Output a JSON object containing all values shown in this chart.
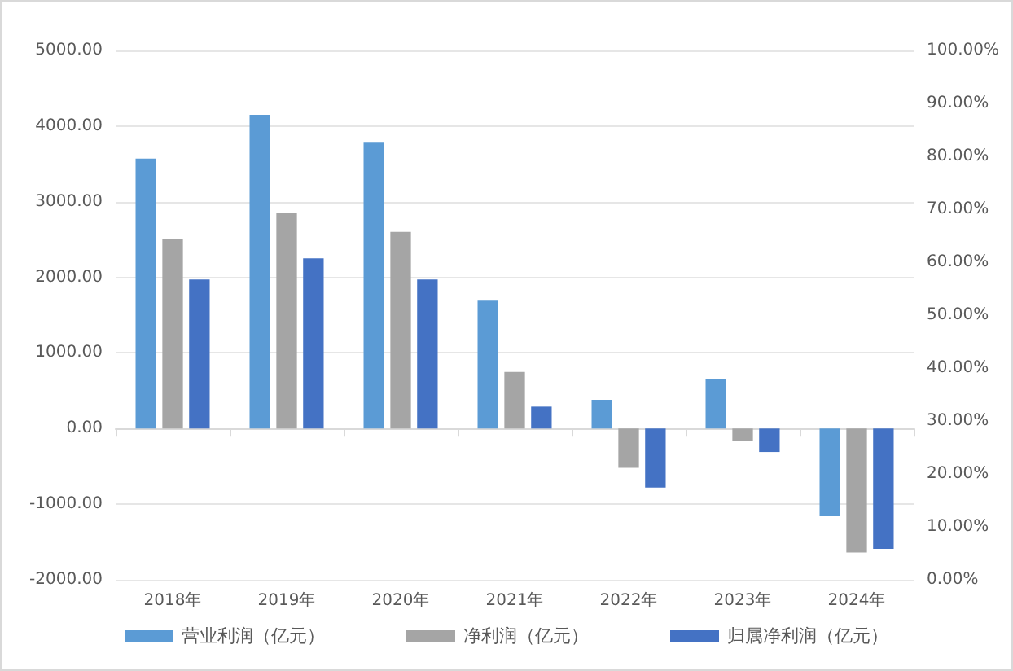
{
  "chart_data": {
    "type": "bar",
    "categories": [
      "2018年",
      "2019年",
      "2020年",
      "2021年",
      "2022年",
      "2023年",
      "2024年"
    ],
    "series": [
      {
        "name": "营业利润（亿元）",
        "color": "#5b9bd5",
        "values": [
          3570,
          4150,
          3790,
          1690,
          380,
          660,
          -1160
        ]
      },
      {
        "name": "净利润（亿元）",
        "color": "#a5a5a5",
        "values": [
          2510,
          2850,
          2600,
          750,
          -520,
          -160,
          -1640
        ]
      },
      {
        "name": "归属净利润（亿元）",
        "color": "#4472c4",
        "values": [
          1970,
          2250,
          1970,
          290,
          -780,
          -310,
          -1590
        ]
      }
    ],
    "ylim": [
      -2000,
      5000
    ],
    "yticks": [
      {
        "value": -2000,
        "label": "-2000.00"
      },
      {
        "value": -1000,
        "label": "-1000.00"
      },
      {
        "value": 0,
        "label": "0.00"
      },
      {
        "value": 1000,
        "label": "1000.00"
      },
      {
        "value": 2000,
        "label": "2000.00"
      },
      {
        "value": 3000,
        "label": "3000.00"
      },
      {
        "value": 4000,
        "label": "4000.00"
      },
      {
        "value": 5000,
        "label": "5000.00"
      }
    ],
    "y2lim": [
      0,
      100
    ],
    "y2ticks": [
      {
        "value": 0,
        "label": "0.00%"
      },
      {
        "value": 10,
        "label": "10.00%"
      },
      {
        "value": 20,
        "label": "20.00%"
      },
      {
        "value": 30,
        "label": "30.00%"
      },
      {
        "value": 40,
        "label": "40.00%"
      },
      {
        "value": 50,
        "label": "50.00%"
      },
      {
        "value": 60,
        "label": "60.00%"
      },
      {
        "value": 70,
        "label": "70.00%"
      },
      {
        "value": 80,
        "label": "80.00%"
      },
      {
        "value": 90,
        "label": "90.00%"
      },
      {
        "value": 100,
        "label": "100.00%"
      }
    ],
    "grid": "y",
    "legend": "bottom"
  }
}
